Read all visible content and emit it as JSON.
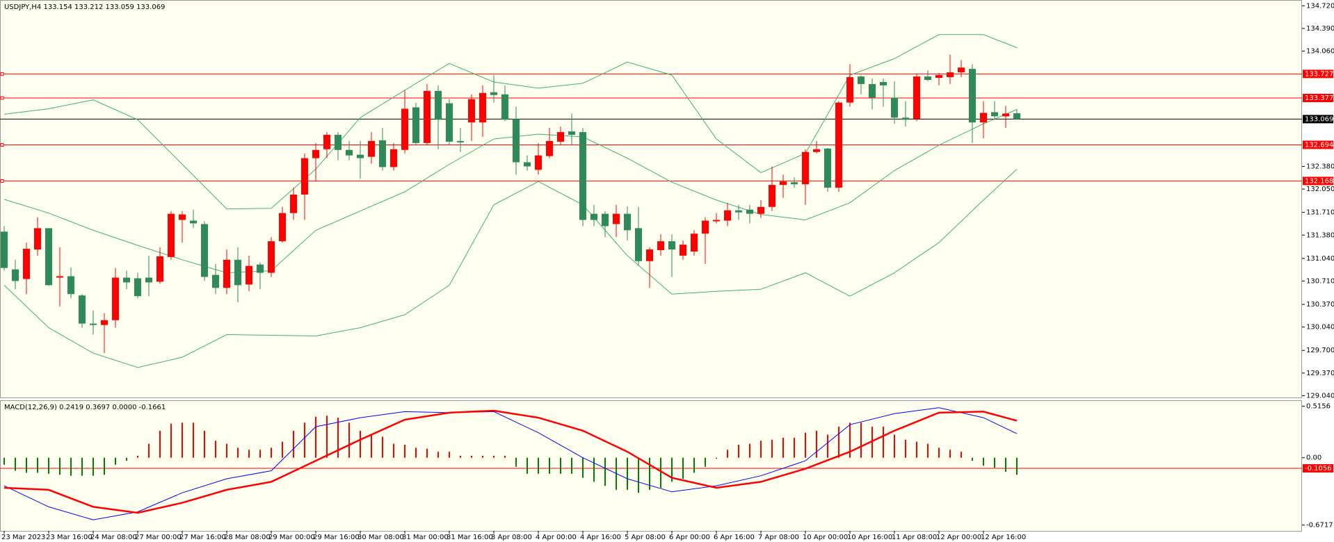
{
  "chart_data": [
    {
      "type": "candlestick",
      "title": "USDJPY,H4  133.154 133.212 133.059 133.069",
      "categories": [
        "23 Mar 2023",
        null,
        null,
        null,
        "23 Mar 16:00",
        null,
        null,
        null,
        "24 Mar 08:00",
        null,
        null,
        null,
        "27 Mar 00:00",
        null,
        null,
        null,
        "27 Mar 16:00",
        null,
        null,
        null,
        "28 Mar 08:00",
        null,
        null,
        null,
        "29 Mar 00:00",
        null,
        null,
        null,
        "29 Mar 16:00",
        null,
        null,
        null,
        "30 Mar 08:00",
        null,
        null,
        null,
        "31 Mar 00:00",
        null,
        null,
        null,
        "31 Mar 16:00",
        null,
        null,
        null,
        "3 Apr 08:00",
        null,
        null,
        null,
        "4 Apr 00:00",
        null,
        null,
        null,
        "4 Apr 16:00",
        null,
        null,
        null,
        "5 Apr 08:00",
        null,
        null,
        null,
        "6 Apr 00:00",
        null,
        null,
        null,
        "6 Apr 16:00",
        null,
        null,
        null,
        "7 Apr 08:00",
        null,
        null,
        null,
        "10 Apr 00:00",
        null,
        null,
        null,
        "10 Apr 16:00",
        null,
        null,
        null,
        "11 Apr 08:00",
        null,
        null,
        null,
        "12 Apr 00:00",
        null,
        null,
        null,
        "12 Apr 16:00",
        null,
        null,
        null
      ],
      "open": [
        131.43,
        130.88,
        130.74,
        131.17,
        131.48,
        130.76,
        130.78,
        130.5,
        130.09,
        130.07,
        130.14,
        130.76,
        130.75,
        130.76,
        130.7,
        131.06,
        131.6,
        131.59,
        131.54,
        130.8,
        130.61,
        131.02,
        130.66,
        130.95,
        130.83,
        131.29,
        131.7,
        131.97,
        132.5,
        132.63,
        132.84,
        132.62,
        132.55,
        132.52,
        132.76,
        132.37,
        132.62,
        133.24,
        132.72,
        133.48,
        133.3,
        132.75,
        133.02,
        133.02,
        133.46,
        133.43,
        133.07,
        132.44,
        132.33,
        132.53,
        132.74,
        132.89,
        132.88,
        131.69,
        131.69,
        131.54,
        131.69,
        131.48,
        131.0,
        131.16,
        131.29,
        131.08,
        131.14,
        131.4,
        131.58,
        131.59,
        131.74,
        131.75,
        131.69,
        131.79,
        132.11,
        132.15,
        132.12,
        132.59,
        132.64,
        132.07,
        133.31,
        133.69,
        133.58,
        133.61,
        133.38,
        133.09,
        133.07,
        133.69,
        133.67,
        133.68,
        133.75,
        133.8,
        133.02,
        133.17,
        133.11,
        133.154
      ],
      "high": [
        131.51,
        131.02,
        131.27,
        131.64,
        131.48,
        131.2,
        130.91,
        130.52,
        130.28,
        130.24,
        130.9,
        130.86,
        130.83,
        131.08,
        131.2,
        131.73,
        131.73,
        131.75,
        131.58,
        130.96,
        131.17,
        131.2,
        131.08,
        130.98,
        131.35,
        131.79,
        132.07,
        132.57,
        132.72,
        132.88,
        132.88,
        132.75,
        132.75,
        132.88,
        132.94,
        132.72,
        133.49,
        133.31,
        133.58,
        133.56,
        133.36,
        132.94,
        133.43,
        133.56,
        133.71,
        133.56,
        133.25,
        132.54,
        132.72,
        132.94,
        132.96,
        133.15,
        132.94,
        131.82,
        131.73,
        131.82,
        131.8,
        131.79,
        131.2,
        131.39,
        131.39,
        131.3,
        131.45,
        131.64,
        131.7,
        131.85,
        131.82,
        131.82,
        131.89,
        132.38,
        132.26,
        132.22,
        132.63,
        132.75,
        132.65,
        133.33,
        133.87,
        133.71,
        133.66,
        133.66,
        133.62,
        133.33,
        133.73,
        133.78,
        133.74,
        134.01,
        133.93,
        133.87,
        133.33,
        133.33,
        133.26,
        133.212
      ],
      "low": [
        130.86,
        130.59,
        130.52,
        131.08,
        130.64,
        130.34,
        130.46,
        130.03,
        129.93,
        129.66,
        130.03,
        130.59,
        130.46,
        130.49,
        130.67,
        131.02,
        131.27,
        131.48,
        130.71,
        130.52,
        130.52,
        130.4,
        130.56,
        130.59,
        130.77,
        131.27,
        131.6,
        131.6,
        132.17,
        132.5,
        132.47,
        132.47,
        132.2,
        132.42,
        132.32,
        132.32,
        132.57,
        132.69,
        132.69,
        132.63,
        132.69,
        132.59,
        132.75,
        132.81,
        133.31,
        133.04,
        132.26,
        132.32,
        132.26,
        132.5,
        132.69,
        132.69,
        131.51,
        131.51,
        131.35,
        131.35,
        131.3,
        130.93,
        130.61,
        131.08,
        130.77,
        131.02,
        131.08,
        130.96,
        131.55,
        131.51,
        131.6,
        131.55,
        131.63,
        131.73,
        131.92,
        132.07,
        131.82,
        132.57,
        132.01,
        132.01,
        133.25,
        133.43,
        133.21,
        133.25,
        133.0,
        132.96,
        133.04,
        133.62,
        133.56,
        133.58,
        133.68,
        132.72,
        132.79,
        133.06,
        132.94,
        133.059
      ],
      "close": [
        130.9,
        130.71,
        131.18,
        131.48,
        130.65,
        130.78,
        130.52,
        130.09,
        130.07,
        130.14,
        130.76,
        130.69,
        130.49,
        130.69,
        131.07,
        131.69,
        131.68,
        131.55,
        130.77,
        130.61,
        131.02,
        130.65,
        130.93,
        130.83,
        131.29,
        131.7,
        131.97,
        132.5,
        132.62,
        132.84,
        132.62,
        132.54,
        132.5,
        132.75,
        132.37,
        132.63,
        133.22,
        132.72,
        133.48,
        133.06,
        132.74,
        132.73,
        133.36,
        133.45,
        133.42,
        133.06,
        132.44,
        132.38,
        132.54,
        132.75,
        132.88,
        132.84,
        131.6,
        131.6,
        131.51,
        131.69,
        131.45,
        131.0,
        131.17,
        131.29,
        131.17,
        131.24,
        131.4,
        131.59,
        131.6,
        131.74,
        131.71,
        131.69,
        131.79,
        132.11,
        132.16,
        132.12,
        132.59,
        132.63,
        132.07,
        133.31,
        133.68,
        133.58,
        133.38,
        133.56,
        133.09,
        133.06,
        133.69,
        133.64,
        133.71,
        133.75,
        133.82,
        133.02,
        133.16,
        133.11,
        133.15,
        133.069
      ],
      "up_color": "#ff0000",
      "down_color": "#2e8b57",
      "series": [
        {
          "color": "#3cb371",
          "width": 1,
          "x": [
            0,
            4,
            8,
            12,
            16,
            20,
            24,
            28,
            32,
            36,
            40,
            44,
            48,
            52,
            56,
            60,
            64,
            68,
            72,
            76,
            80,
            84,
            88,
            91
          ],
          "values": [
            133.14,
            133.22,
            133.35,
            133.06,
            132.41,
            131.76,
            131.77,
            132.34,
            133.09,
            133.49,
            133.88,
            133.61,
            133.52,
            133.59,
            133.9,
            133.71,
            132.78,
            132.29,
            132.57,
            133.71,
            133.95,
            134.3,
            134.3,
            134.11
          ]
        },
        {
          "color": "#3cb371",
          "width": 1,
          "x": [
            0,
            4,
            8,
            12,
            16,
            20,
            24,
            28,
            32,
            36,
            40,
            44,
            48,
            52,
            56,
            60,
            64,
            68,
            72,
            76,
            80,
            84,
            88,
            91
          ],
          "values": [
            131.9,
            131.7,
            131.45,
            131.23,
            131.02,
            130.83,
            130.86,
            131.45,
            131.73,
            132.01,
            132.41,
            132.78,
            132.85,
            132.81,
            132.5,
            132.15,
            131.89,
            131.68,
            131.6,
            131.85,
            132.32,
            132.69,
            133.0,
            133.21
          ]
        },
        {
          "color": "#3cb371",
          "width": 1,
          "x": [
            0,
            4,
            8,
            12,
            16,
            20,
            24,
            28,
            32,
            36,
            40,
            44,
            48,
            52,
            56,
            60,
            64,
            68,
            72,
            76,
            80,
            84,
            88,
            91
          ],
          "values": [
            130.65,
            130.03,
            129.66,
            129.45,
            129.6,
            129.93,
            129.92,
            129.91,
            130.03,
            130.22,
            130.65,
            131.82,
            132.16,
            131.82,
            131.08,
            130.52,
            130.56,
            130.59,
            130.83,
            130.49,
            130.83,
            131.27,
            131.89,
            132.34
          ]
        }
      ],
      "levels": [
        {
          "value": 133.727,
          "color": "#ff0000"
        },
        {
          "value": 133.377,
          "color": "#ff0000"
        },
        {
          "value": 132.694,
          "color": "#ff0000"
        },
        {
          "value": 132.168,
          "color": "#ff0000"
        },
        {
          "value": 133.069,
          "color": "#000000"
        }
      ],
      "ylim": [
        129.014,
        134.794
      ],
      "yticks": [
        {
          "value": 134.72,
          "label": "134.720"
        },
        {
          "value": 134.39,
          "label": "134.390"
        },
        {
          "value": 134.06,
          "label": "134.060"
        },
        {
          "value": 132.38,
          "label": "132.380"
        },
        {
          "value": 132.05,
          "label": "132.050"
        },
        {
          "value": 131.71,
          "label": "131.710"
        },
        {
          "value": 131.38,
          "label": "131.380"
        },
        {
          "value": 131.04,
          "label": "131.040"
        },
        {
          "value": 130.71,
          "label": "130.710"
        },
        {
          "value": 130.37,
          "label": "130.370"
        },
        {
          "value": 130.04,
          "label": "130.040"
        },
        {
          "value": 129.7,
          "label": "129.700"
        },
        {
          "value": 129.37,
          "label": "129.370"
        },
        {
          "value": 129.04,
          "label": "129.040"
        }
      ]
    },
    {
      "type": "macd",
      "title": "MACD(12,26,9) 0.2419 0.3697 0.0000 -0.1661",
      "values": [
        -0.07,
        -0.13,
        -0.15,
        -0.15,
        -0.16,
        -0.17,
        -0.18,
        -0.18,
        -0.18,
        -0.17,
        -0.07,
        -0.03,
        0.02,
        0.14,
        0.27,
        0.34,
        0.35,
        0.35,
        0.27,
        0.17,
        0.14,
        0.1,
        0.08,
        0.08,
        0.1,
        0.16,
        0.27,
        0.35,
        0.41,
        0.42,
        0.4,
        0.35,
        0.27,
        0.23,
        0.21,
        0.14,
        0.13,
        0.1,
        0.09,
        0.06,
        0.06,
        0.02,
        0.02,
        0.02,
        0.02,
        0.02,
        -0.09,
        -0.16,
        -0.16,
        -0.16,
        -0.16,
        -0.16,
        -0.2,
        -0.24,
        -0.28,
        -0.32,
        -0.32,
        -0.35,
        -0.32,
        -0.3,
        -0.24,
        -0.21,
        -0.15,
        -0.09,
        -0.01,
        0.08,
        0.13,
        0.14,
        0.17,
        0.18,
        0.2,
        0.2,
        0.25,
        0.27,
        0.23,
        0.31,
        0.35,
        0.35,
        0.31,
        0.31,
        0.23,
        0.18,
        0.16,
        0.14,
        0.1,
        0.08,
        0.06,
        -0.03,
        -0.08,
        -0.1,
        -0.14,
        -0.17
      ],
      "up_color": "#ff0000",
      "down_color": "#008000",
      "series": [
        {
          "color": "#0000ff",
          "width": 1,
          "x": [
            0,
            4,
            8,
            12,
            16,
            20,
            24,
            28,
            32,
            36,
            40,
            44,
            48,
            52,
            56,
            60,
            64,
            68,
            72,
            76,
            80,
            84,
            88,
            91
          ],
          "values": [
            -0.28,
            -0.49,
            -0.62,
            -0.54,
            -0.35,
            -0.21,
            -0.13,
            0.31,
            0.4,
            0.46,
            0.45,
            0.46,
            0.25,
            0.0,
            -0.21,
            -0.34,
            -0.28,
            -0.18,
            -0.03,
            0.33,
            0.44,
            0.5,
            0.4,
            0.24
          ]
        },
        {
          "color": "#ff0000",
          "width": 2.5,
          "x": [
            0,
            4,
            8,
            12,
            16,
            20,
            24,
            28,
            32,
            36,
            40,
            44,
            48,
            52,
            56,
            60,
            64,
            68,
            72,
            76,
            80,
            84,
            88,
            91
          ],
          "values": [
            -0.3,
            -0.32,
            -0.49,
            -0.55,
            -0.45,
            -0.32,
            -0.24,
            -0.03,
            0.18,
            0.38,
            0.45,
            0.47,
            0.4,
            0.27,
            0.06,
            -0.2,
            -0.3,
            -0.24,
            -0.11,
            0.06,
            0.27,
            0.45,
            0.46,
            0.37
          ]
        }
      ],
      "levels": [
        {
          "value": -0.1056,
          "color": "#ff0000"
        }
      ],
      "ylim": [
        -0.73,
        0.567
      ],
      "yticks": [
        0.5156,
        {
          "value": 0,
          "label": "0.00"
        },
        -0.6717
      ]
    }
  ]
}
